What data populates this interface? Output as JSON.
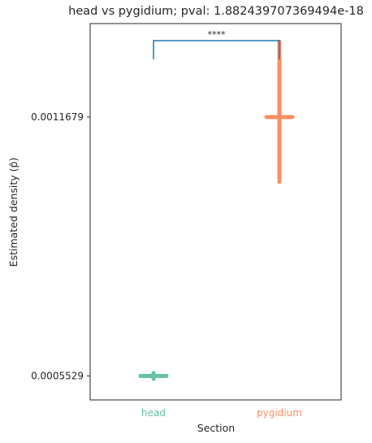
{
  "chart_data": {
    "type": "scatter",
    "title": "head vs pygidium; pval: 1.882439707369494e-18",
    "xlabel": "Section",
    "ylabel": "Estimated density (p̂)",
    "categories": [
      "head",
      "pygidium"
    ],
    "category_colors": [
      "#66c2a5",
      "#fc8d62"
    ],
    "points": [
      {
        "category": "head",
        "estimate": 0.0005529,
        "ci_low": 0.000546,
        "ci_high": 0.00056
      },
      {
        "category": "pygidium",
        "estimate": 0.0011679,
        "ci_low": 0.001014,
        "ci_high": 0.001347
      }
    ],
    "yticks": [
      0.0005529,
      0.0011679
    ],
    "ytick_labels": [
      "0.0005529",
      "0.0011679"
    ],
    "ylim": [
      0.000496,
      0.00139
    ],
    "significance": {
      "label": "****",
      "between": [
        "head",
        "pygidium"
      ],
      "color": "#1f77b4"
    },
    "grid": false,
    "legend": "none"
  }
}
